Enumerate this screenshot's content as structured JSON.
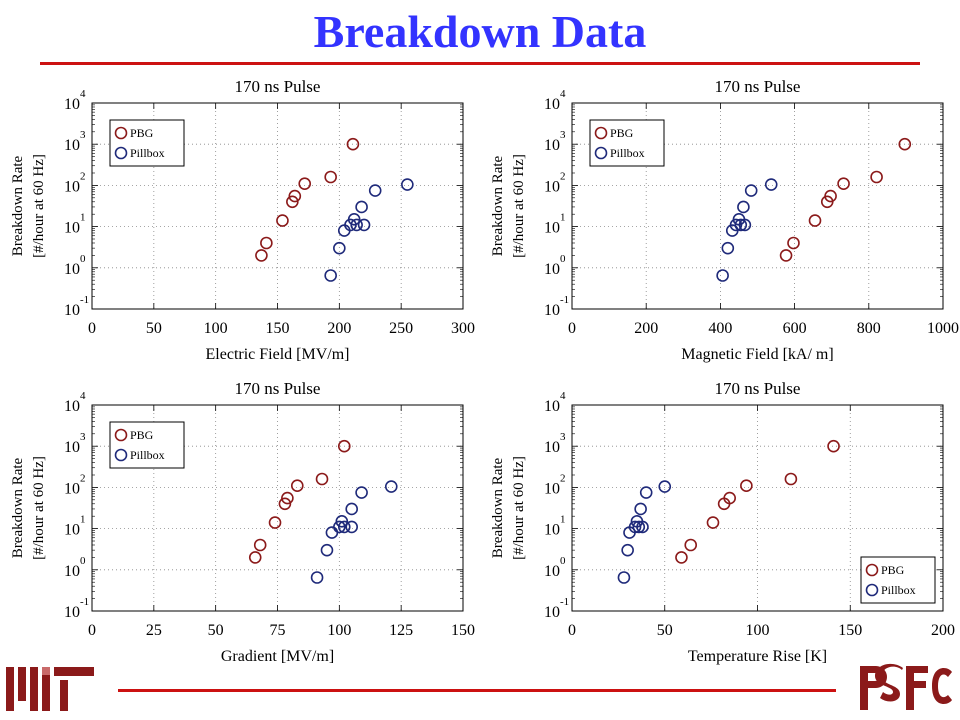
{
  "slide": {
    "title": "Breakdown Data"
  },
  "colors": {
    "title": "#3333ff",
    "rule": "#cc1111",
    "pbg": "#8b1a1a",
    "pillbox": "#1f2a7a",
    "logo_mit": "#8b1a1a",
    "logo_psfc": "#8b1a1a"
  },
  "logos": {
    "left": "MIT logo",
    "right": "PSFC logo"
  },
  "chart_data": [
    {
      "type": "scatter",
      "title": "170 ns Pulse",
      "xlabel": "Electric Field  [MV/m]",
      "ylabel": "Breakdown Rate",
      "ylabel2": "[#/hour at 60 Hz]",
      "xlim": [
        0,
        300
      ],
      "xticks": [
        "0",
        "50",
        "100",
        "150",
        "200",
        "250",
        "300"
      ],
      "ylim": [
        0.1,
        10000
      ],
      "yscale": "log",
      "legend_position": "top-left",
      "series": [
        {
          "name": "PBG",
          "color": "#8b1a1a",
          "points": [
            [
              137,
              2
            ],
            [
              141,
              4
            ],
            [
              154,
              14
            ],
            [
              162,
              40
            ],
            [
              164,
              55
            ],
            [
              172,
              110
            ],
            [
              193,
              160
            ],
            [
              211,
              1000
            ]
          ]
        },
        {
          "name": "Pillbox",
          "color": "#1f2a7a",
          "points": [
            [
              193,
              0.65
            ],
            [
              200,
              3
            ],
            [
              204,
              8
            ],
            [
              209,
              11
            ],
            [
              212,
              15
            ],
            [
              214,
              11
            ],
            [
              218,
              30
            ],
            [
              220,
              11
            ],
            [
              229,
              75
            ],
            [
              255,
              105
            ]
          ]
        }
      ]
    },
    {
      "type": "scatter",
      "title": "170 ns Pulse",
      "xlabel": "Magnetic Field [kA/  m]",
      "ylabel": "Breakdown Rate",
      "ylabel2": "[#/hour at 60 Hz]",
      "xlim": [
        0,
        1000
      ],
      "xticks": [
        "0",
        "200",
        "400",
        "600",
        "800",
        "1000"
      ],
      "ylim": [
        0.1,
        10000
      ],
      "yscale": "log",
      "legend_position": "top-left",
      "series": [
        {
          "name": "PBG",
          "color": "#8b1a1a",
          "points": [
            [
              577,
              2
            ],
            [
              597,
              4
            ],
            [
              655,
              14
            ],
            [
              688,
              40
            ],
            [
              697,
              55
            ],
            [
              732,
              110
            ],
            [
              821,
              160
            ],
            [
              897,
              1000
            ]
          ]
        },
        {
          "name": "Pillbox",
          "color": "#1f2a7a",
          "points": [
            [
              406,
              0.65
            ],
            [
              420,
              3
            ],
            [
              432,
              8
            ],
            [
              442,
              11
            ],
            [
              450,
              15
            ],
            [
              455,
              11
            ],
            [
              462,
              30
            ],
            [
              466,
              11
            ],
            [
              483,
              75
            ],
            [
              537,
              105
            ]
          ]
        }
      ]
    },
    {
      "type": "scatter",
      "title": "170 ns Pulse",
      "xlabel": "Gradient [MV/m]",
      "ylabel": "Breakdown Rate",
      "ylabel2": "[#/hour at 60 Hz]",
      "xlim": [
        0,
        150
      ],
      "xticks": [
        "0",
        "25",
        "50",
        "75",
        "100",
        "125",
        "150"
      ],
      "ylim": [
        0.1,
        10000
      ],
      "yscale": "log",
      "legend_position": "top-left",
      "series": [
        {
          "name": "PBG",
          "color": "#8b1a1a",
          "points": [
            [
              66,
              2
            ],
            [
              68,
              4
            ],
            [
              74,
              14
            ],
            [
              78,
              40
            ],
            [
              79,
              55
            ],
            [
              83,
              110
            ],
            [
              93,
              160
            ],
            [
              102,
              1000
            ]
          ]
        },
        {
          "name": "Pillbox",
          "color": "#1f2a7a",
          "points": [
            [
              91,
              0.65
            ],
            [
              95,
              3
            ],
            [
              97,
              8
            ],
            [
              100,
              11
            ],
            [
              101,
              15
            ],
            [
              102,
              11
            ],
            [
              105,
              30
            ],
            [
              105,
              11
            ],
            [
              109,
              75
            ],
            [
              121,
              105
            ]
          ]
        }
      ]
    },
    {
      "type": "scatter",
      "title": "170 ns Pulse",
      "xlabel": "Temperature Rise [K]",
      "ylabel": "Breakdown Rate",
      "ylabel2": "[#/hour at 60 Hz]",
      "xlim": [
        0,
        200
      ],
      "xticks": [
        "0",
        "50",
        "100",
        "150",
        "200"
      ],
      "ylim": [
        0.1,
        10000
      ],
      "yscale": "log",
      "legend_position": "bottom-right",
      "series": [
        {
          "name": "PBG",
          "color": "#8b1a1a",
          "points": [
            [
              59,
              2
            ],
            [
              64,
              4
            ],
            [
              76,
              14
            ],
            [
              82,
              40
            ],
            [
              85,
              55
            ],
            [
              94,
              110
            ],
            [
              118,
              160
            ],
            [
              141,
              1000
            ]
          ]
        },
        {
          "name": "Pillbox",
          "color": "#1f2a7a",
          "points": [
            [
              28,
              0.65
            ],
            [
              30,
              3
            ],
            [
              31,
              8
            ],
            [
              34,
              11
            ],
            [
              35,
              15
            ],
            [
              36,
              11
            ],
            [
              37,
              30
            ],
            [
              38,
              11
            ],
            [
              40,
              75
            ],
            [
              50,
              105
            ]
          ]
        }
      ]
    }
  ]
}
